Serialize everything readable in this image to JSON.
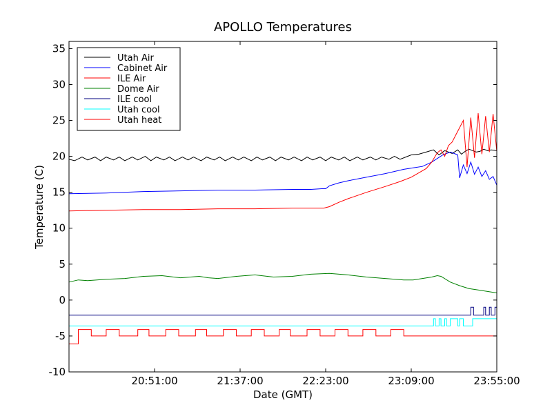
{
  "chart_data": {
    "type": "line",
    "title": "APOLLO Temperatures",
    "xlabel": "Date (GMT)",
    "ylabel": "Temperature (C)",
    "x_unit": "minutes after 20:05:00 GMT",
    "xlim": [
      0,
      230
    ],
    "ylim": [
      -10,
      36
    ],
    "x_ticks": [
      46,
      92,
      138,
      184,
      230
    ],
    "x_tick_labels": [
      "20:51:00",
      "21:37:00",
      "22:23:00",
      "23:09:00",
      "23:55:00"
    ],
    "y_ticks": [
      -10,
      -5,
      0,
      5,
      10,
      15,
      20,
      25,
      30,
      35
    ],
    "y_tick_labels": [
      "-10",
      "-5",
      "0",
      "5",
      "10",
      "15",
      "20",
      "25",
      "30",
      "35"
    ],
    "legend_position": "top-left",
    "series": [
      {
        "name": "Utah Air",
        "color": "#000000",
        "x": [
          0,
          3,
          7,
          10,
          14,
          17,
          20,
          24,
          27,
          30,
          34,
          37,
          41,
          44,
          47,
          51,
          54,
          57,
          61,
          64,
          67,
          71,
          74,
          78,
          81,
          84,
          88,
          91,
          94,
          98,
          101,
          104,
          108,
          111,
          114,
          118,
          121,
          125,
          128,
          131,
          135,
          138,
          141,
          145,
          148,
          151,
          155,
          158,
          162,
          165,
          168,
          172,
          175,
          178,
          182,
          184,
          188,
          192,
          196,
          199,
          202,
          206,
          209,
          211,
          213,
          215,
          217,
          219,
          221,
          223,
          225,
          227,
          230
        ],
        "values": [
          19.6,
          19.4,
          19.9,
          19.5,
          19.9,
          19.4,
          19.9,
          19.5,
          19.9,
          19.4,
          19.9,
          19.5,
          20.0,
          19.4,
          19.9,
          19.5,
          19.9,
          19.4,
          19.9,
          19.5,
          19.9,
          19.4,
          19.9,
          19.5,
          19.9,
          19.4,
          19.9,
          19.5,
          19.9,
          19.4,
          19.9,
          19.5,
          19.9,
          19.4,
          19.9,
          19.5,
          19.9,
          19.4,
          19.9,
          19.5,
          19.9,
          19.4,
          19.9,
          19.5,
          19.9,
          19.4,
          19.9,
          19.5,
          19.9,
          19.5,
          19.9,
          19.6,
          20.0,
          19.6,
          20.0,
          20.2,
          20.3,
          20.6,
          20.9,
          20.2,
          20.8,
          20.4,
          20.9,
          20.3,
          20.7,
          21.0,
          20.8,
          20.6,
          20.7,
          21.0,
          20.8,
          20.9,
          20.8
        ]
      },
      {
        "name": "Cabinet Air",
        "color": "#0000ff",
        "x": [
          0,
          20,
          40,
          60,
          80,
          100,
          120,
          130,
          136,
          138,
          140,
          145,
          150,
          160,
          170,
          180,
          185,
          190,
          195,
          198,
          201,
          203,
          205,
          207,
          209,
          210,
          212,
          214,
          216,
          218,
          220,
          222,
          224,
          226,
          228,
          230
        ],
        "values": [
          14.8,
          14.9,
          15.1,
          15.2,
          15.3,
          15.3,
          15.4,
          15.4,
          15.5,
          15.5,
          15.9,
          16.3,
          16.6,
          17.1,
          17.6,
          18.2,
          18.4,
          18.6,
          19.2,
          19.7,
          20.2,
          20.4,
          20.6,
          20.4,
          20.2,
          17.0,
          18.8,
          17.6,
          19.2,
          17.5,
          18.5,
          17.2,
          18.0,
          16.8,
          17.2,
          16.0
        ]
      },
      {
        "name": "ILE Air",
        "color": "#ff0000",
        "x": [
          0,
          20,
          40,
          60,
          80,
          100,
          120,
          130,
          137,
          140,
          145,
          150,
          160,
          170,
          178,
          184,
          188,
          192,
          195,
          198,
          200,
          202,
          204,
          206,
          208,
          210,
          212,
          214,
          216,
          218,
          220,
          222,
          224,
          226,
          228,
          230
        ],
        "values": [
          12.4,
          12.5,
          12.6,
          12.6,
          12.7,
          12.7,
          12.8,
          12.8,
          12.8,
          13.0,
          13.6,
          14.1,
          15.0,
          15.8,
          16.5,
          17.1,
          17.7,
          18.3,
          19.2,
          20.5,
          20.9,
          20.0,
          21.5,
          22.0,
          23.0,
          24.0,
          25.0,
          18.5,
          25.4,
          19.8,
          26.0,
          20.3,
          25.6,
          20.6,
          25.9,
          20.7
        ]
      },
      {
        "name": "Dome Air",
        "color": "#008000",
        "x": [
          0,
          5,
          10,
          20,
          30,
          40,
          50,
          60,
          70,
          75,
          80,
          90,
          100,
          110,
          120,
          130,
          140,
          150,
          160,
          170,
          180,
          185,
          190,
          195,
          198,
          200,
          205,
          210,
          215,
          220,
          225,
          230
        ],
        "values": [
          2.5,
          2.8,
          2.7,
          2.9,
          3.0,
          3.3,
          3.4,
          3.1,
          3.3,
          3.1,
          3.0,
          3.3,
          3.5,
          3.2,
          3.3,
          3.6,
          3.7,
          3.5,
          3.2,
          3.0,
          2.8,
          2.8,
          3.0,
          3.2,
          3.4,
          3.3,
          2.5,
          2.0,
          1.6,
          1.4,
          1.2,
          1.0
        ]
      },
      {
        "name": "ILE cool",
        "color": "#000080",
        "x": [
          0,
          216,
          216,
          217.5,
          217.5,
          223,
          223,
          224,
          224,
          226,
          226,
          227,
          227,
          229,
          229,
          230
        ],
        "values": [
          -2.1,
          -2.1,
          -1.0,
          -1.0,
          -2.1,
          -2.1,
          -1.0,
          -1.0,
          -2.1,
          -2.1,
          -1.0,
          -1.0,
          -2.1,
          -2.1,
          -1.0,
          -1.0
        ]
      },
      {
        "name": "Utah cool",
        "color": "#00ffff",
        "x": [
          0,
          196,
          196,
          197,
          197,
          199,
          199,
          200,
          200,
          202,
          202,
          203,
          203,
          205,
          205,
          209,
          209,
          210,
          210,
          212,
          212,
          217,
          217,
          218,
          218,
          230
        ],
        "values": [
          -3.6,
          -3.6,
          -2.6,
          -2.6,
          -3.6,
          -3.6,
          -2.6,
          -2.6,
          -3.6,
          -3.6,
          -2.6,
          -2.6,
          -3.6,
          -3.6,
          -2.6,
          -2.6,
          -3.6,
          -3.6,
          -2.6,
          -2.6,
          -3.6,
          -3.6,
          -2.6,
          -2.6,
          -2.6,
          -2.6
        ]
      },
      {
        "name": "Utah heat",
        "color": "#ff0000",
        "x": [
          0,
          5,
          5,
          12,
          12,
          20,
          20,
          27,
          27,
          37,
          37,
          43,
          43,
          52,
          52,
          59,
          59,
          68,
          68,
          74,
          74,
          83,
          83,
          90,
          90,
          98,
          98,
          105,
          105,
          113,
          113,
          119,
          119,
          128,
          128,
          135,
          135,
          143,
          143,
          150,
          150,
          158,
          158,
          165,
          165,
          173,
          173,
          180,
          180,
          230
        ],
        "values": [
          -6.1,
          -6.1,
          -4.1,
          -4.1,
          -5.0,
          -5.0,
          -4.1,
          -4.1,
          -5.0,
          -5.0,
          -4.1,
          -4.1,
          -5.0,
          -5.0,
          -4.1,
          -4.1,
          -5.0,
          -5.0,
          -4.1,
          -4.1,
          -5.0,
          -5.0,
          -4.1,
          -4.1,
          -5.0,
          -5.0,
          -4.1,
          -4.1,
          -5.0,
          -5.0,
          -4.1,
          -4.1,
          -5.0,
          -5.0,
          -4.1,
          -4.1,
          -5.0,
          -5.0,
          -4.1,
          -4.1,
          -5.0,
          -5.0,
          -4.1,
          -4.1,
          -5.0,
          -5.0,
          -4.1,
          -4.1,
          -5.0,
          -5.0
        ]
      }
    ]
  }
}
